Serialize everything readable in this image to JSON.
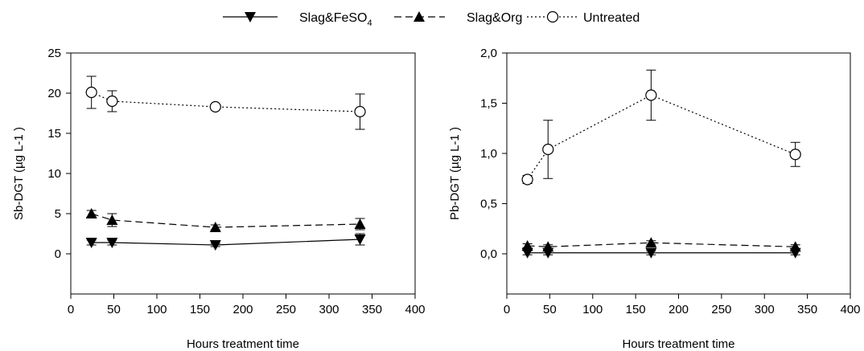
{
  "legend": {
    "items": [
      {
        "series": "Slag&FeSO4",
        "label": "Slag&FeSO",
        "subscript": "4",
        "line": "solid",
        "marker": "triangle-down-filled"
      },
      {
        "series": "Slag&Org",
        "label": "Slag&Org",
        "subscript": "",
        "line": "dashed",
        "marker": "triangle-up-filled"
      },
      {
        "series": "Untreated",
        "label": "Untreated",
        "subscript": "",
        "line": "dotted",
        "marker": "circle-open"
      }
    ]
  },
  "chart_data": [
    {
      "type": "line",
      "xlabel": "Hours treatment time",
      "ylabel": "Sb-DGT (µg L-1 )",
      "xlim": [
        0,
        400
      ],
      "ylim": [
        -5,
        25
      ],
      "xticks": [
        "0",
        "50",
        "100",
        "150",
        "200",
        "250",
        "300",
        "350",
        "400"
      ],
      "xtick_values": [
        0,
        50,
        100,
        150,
        200,
        250,
        300,
        350,
        400
      ],
      "yticks": [
        "0",
        "5",
        "10",
        "15",
        "20",
        "25"
      ],
      "ytick_values": [
        0,
        5,
        10,
        15,
        20,
        25
      ],
      "grid": false,
      "legend_position": "top-center",
      "series": [
        {
          "name": "Slag&FeSO4",
          "x": [
            24,
            48,
            168,
            336
          ],
          "values": [
            1.4,
            1.4,
            1.1,
            1.8
          ],
          "errors": [
            0.3,
            0.3,
            0.2,
            0.7
          ]
        },
        {
          "name": "Slag&Org",
          "x": [
            24,
            48,
            168,
            336
          ],
          "values": [
            5.0,
            4.2,
            3.3,
            3.7
          ],
          "errors": [
            0.4,
            0.8,
            0.3,
            0.7
          ]
        },
        {
          "name": "Untreated",
          "x": [
            24,
            48,
            168,
            336
          ],
          "values": [
            20.1,
            19.0,
            18.3,
            17.7
          ],
          "errors": [
            2.0,
            1.3,
            0.3,
            2.2
          ]
        }
      ]
    },
    {
      "type": "line",
      "xlabel": "Hours treatment time",
      "ylabel": "Pb-DGT (µg L-1 )",
      "xlim": [
        0,
        400
      ],
      "ylim": [
        -0.4,
        2.0
      ],
      "xticks": [
        "0",
        "50",
        "100",
        "150",
        "200",
        "250",
        "300",
        "350",
        "400"
      ],
      "xtick_values": [
        0,
        50,
        100,
        150,
        200,
        250,
        300,
        350,
        400
      ],
      "yticks": [
        "0,0",
        "0,5",
        "1,0",
        "1,5",
        "2,0"
      ],
      "ytick_values": [
        0,
        0.5,
        1.0,
        1.5,
        2.0
      ],
      "grid": false,
      "legend_position": "top-center",
      "series": [
        {
          "name": "Slag&FeSO4",
          "x": [
            24,
            48,
            168,
            336
          ],
          "values": [
            0.01,
            0.01,
            0.01,
            0.01
          ],
          "errors": [
            0.02,
            0.02,
            0.02,
            0.02
          ]
        },
        {
          "name": "Slag&Org",
          "x": [
            24,
            48,
            168,
            336
          ],
          "values": [
            0.08,
            0.07,
            0.11,
            0.07
          ],
          "errors": [
            0.02,
            0.02,
            0.02,
            0.02
          ]
        },
        {
          "name": "Untreated",
          "x": [
            24,
            48,
            168,
            336
          ],
          "values": [
            0.74,
            1.04,
            1.58,
            0.99
          ],
          "errors": [
            0.04,
            0.29,
            0.25,
            0.12
          ]
        }
      ]
    }
  ]
}
